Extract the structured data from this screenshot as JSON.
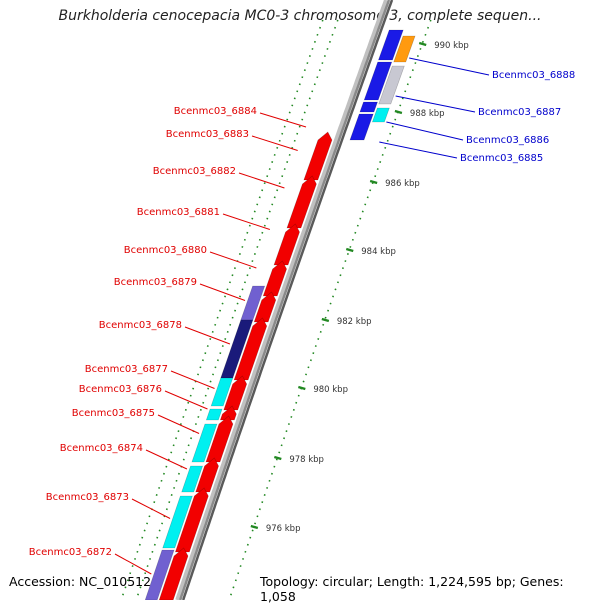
{
  "title": "Burkholderia cenocepacia MC0-3 chromosome 3, complete sequen...",
  "footer": {
    "accession": "Accession: NC_010512",
    "topology": "Topology: circular; Length: 1,224,595 bp; Genes: 1,058"
  },
  "colors": {
    "forward_label": "#e00000",
    "reverse_label": "#0000cc",
    "red_gene": "#f20000",
    "blue_gene": "#1a1ae6",
    "cyan_gene": "#00f0f0",
    "orange_gene": "#ff9a10",
    "grey_gene": "#c8c8d2",
    "navy_gene": "#1a1a7a",
    "purple_gene": "#7060d0",
    "tick": "#228822",
    "backbone": "#8a8a8a"
  },
  "ticks": [
    {
      "label": "976 kbp",
      "kbp": 976
    },
    {
      "label": "978 kbp",
      "kbp": 978
    },
    {
      "label": "980 kbp",
      "kbp": 980
    },
    {
      "label": "982 kbp",
      "kbp": 982
    },
    {
      "label": "984 kbp",
      "kbp": 984
    },
    {
      "label": "986 kbp",
      "kbp": 986
    },
    {
      "label": "988 kbp",
      "kbp": 988
    },
    {
      "label": "990 kbp",
      "kbp": 990
    }
  ],
  "forward_labels": [
    "Bcenmc03_6884",
    "Bcenmc03_6883",
    "Bcenmc03_6882",
    "Bcenmc03_6881",
    "Bcenmc03_6880",
    "Bcenmc03_6879",
    "Bcenmc03_6878",
    "Bcenmc03_6877",
    "Bcenmc03_6876",
    "Bcenmc03_6875",
    "Bcenmc03_6874",
    "Bcenmc03_6873",
    "Bcenmc03_6872"
  ],
  "reverse_labels": [
    "Bcenmc03_6888",
    "Bcenmc03_6887",
    "Bcenmc03_6886",
    "Bcenmc03_6885"
  ]
}
